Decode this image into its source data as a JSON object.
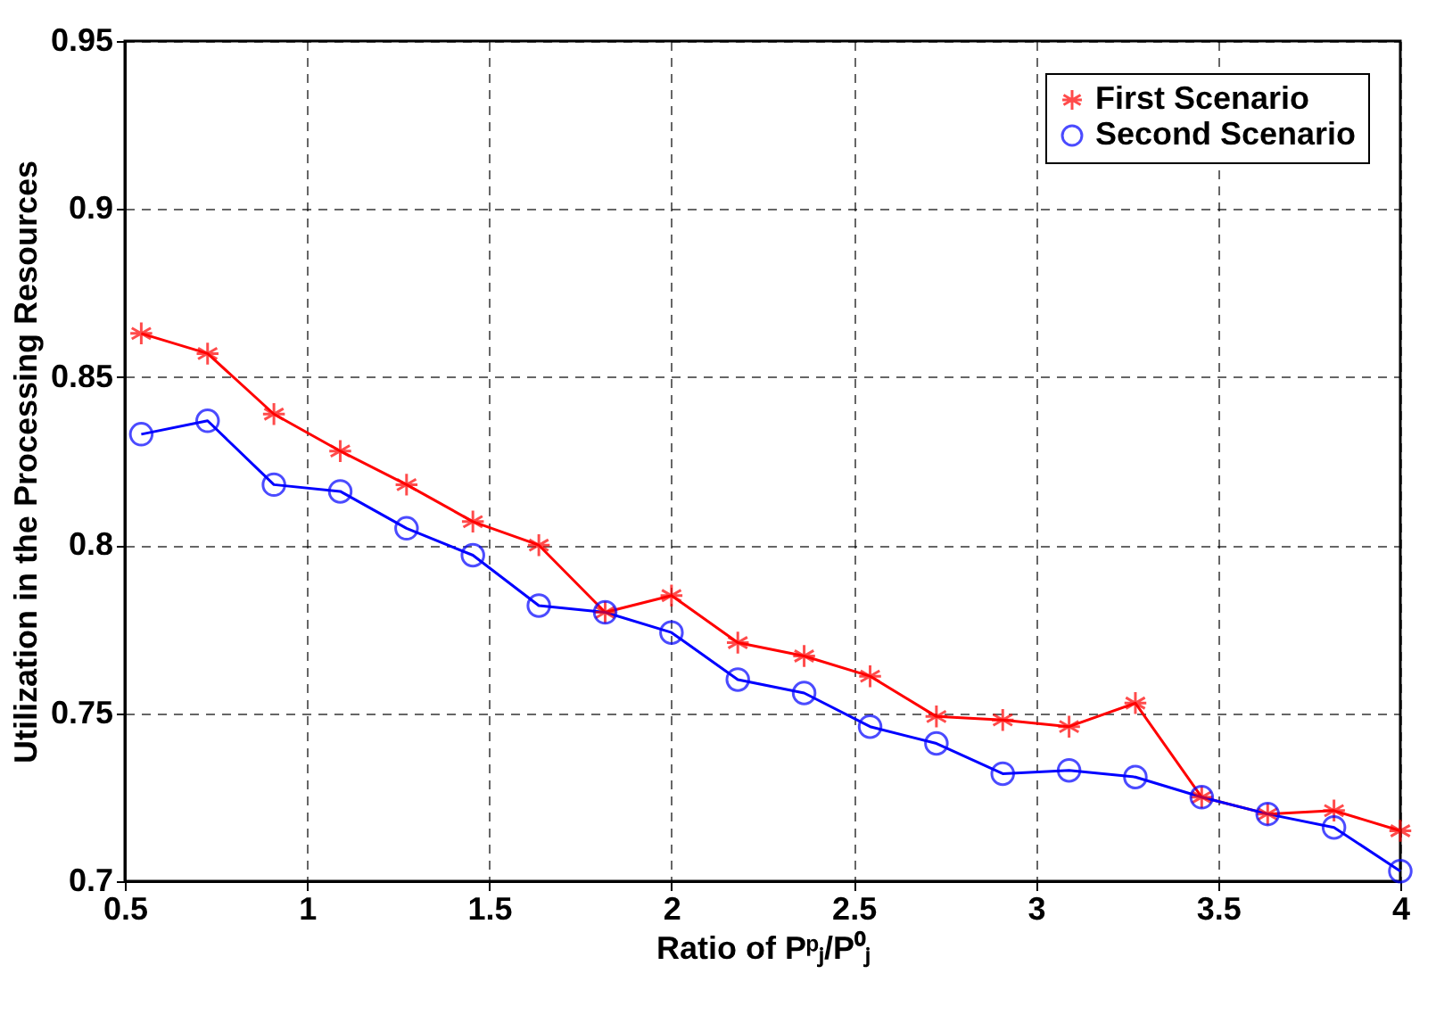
{
  "chart_data": {
    "type": "line",
    "xlabel": "Ratio of Pᵖⱼ/P⁰ⱼ",
    "ylabel": "Utilization in the Processing Resources",
    "x": [
      0.545,
      0.727,
      0.909,
      1.091,
      1.273,
      1.455,
      1.636,
      1.818,
      2.0,
      2.182,
      2.364,
      2.545,
      2.727,
      2.909,
      3.091,
      3.273,
      3.455,
      3.636,
      3.818,
      4.0
    ],
    "series": [
      {
        "name": "First Scenario",
        "color": "#ff0000",
        "marker": "cross",
        "values": [
          0.863,
          0.857,
          0.839,
          0.828,
          0.818,
          0.807,
          0.8,
          0.78,
          0.785,
          0.771,
          0.767,
          0.761,
          0.749,
          0.748,
          0.746,
          0.753,
          0.725,
          0.72,
          0.721,
          0.715
        ]
      },
      {
        "name": "Second Scenario",
        "color": "#0000ff",
        "marker": "circle",
        "values": [
          0.833,
          0.837,
          0.818,
          0.816,
          0.805,
          0.797,
          0.782,
          0.78,
          0.774,
          0.76,
          0.756,
          0.746,
          0.741,
          0.732,
          0.733,
          0.731,
          0.725,
          0.72,
          0.716,
          0.703
        ]
      }
    ],
    "xlim": [
      0.5,
      4
    ],
    "xticks": [
      0.5,
      1,
      1.5,
      2,
      2.5,
      3,
      3.5,
      4
    ],
    "ylim": [
      0.7,
      0.95
    ],
    "yticks": [
      0.7,
      0.75,
      0.8,
      0.85,
      0.9,
      0.95
    ],
    "grid": true,
    "legend": "top right",
    "line_style": "solid"
  }
}
